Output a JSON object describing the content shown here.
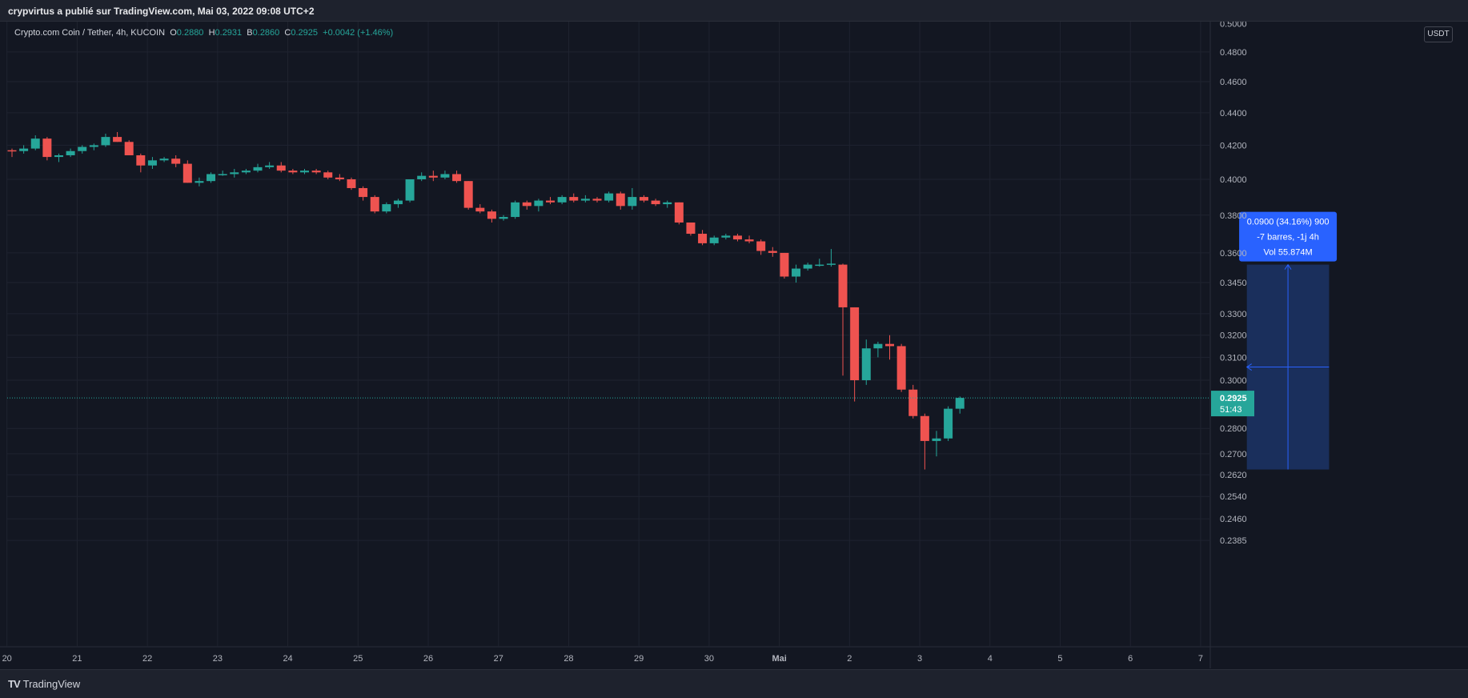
{
  "header": {
    "publish_line": "crypvirtus a publié sur TradingView.com, Mai 03, 2022 09:08 UTC+2"
  },
  "legend": {
    "symbol": "Crypto.com Coin / Tether, 4h, KUCOIN",
    "o_label": "O",
    "o_value": "0.2880",
    "h_label": "H",
    "h_value": "0.2931",
    "b_label": "B",
    "b_value": "0.2860",
    "c_label": "C",
    "c_value": "0.2925",
    "change": "+0.0042 (+1.46%)"
  },
  "price_axis": {
    "currency": "USDT",
    "top_partial": "0.5000",
    "ticks": [
      "0.4800",
      "0.4600",
      "0.4400",
      "0.4200",
      "0.4000",
      "0.3800",
      "0.3600",
      "0.3450",
      "0.3300",
      "0.3200",
      "0.3100",
      "0.3000",
      "0.2800",
      "0.2700",
      "0.2620",
      "0.2540",
      "0.2460",
      "0.2385"
    ],
    "tick_values": [
      0.48,
      0.46,
      0.44,
      0.42,
      0.4,
      0.38,
      0.36,
      0.345,
      0.33,
      0.32,
      0.31,
      0.3,
      0.28,
      0.27,
      0.262,
      0.254,
      0.246,
      0.2385
    ],
    "scale": "log"
  },
  "time_axis": {
    "labels": [
      "20",
      "21",
      "22",
      "23",
      "24",
      "25",
      "26",
      "27",
      "28",
      "29",
      "30",
      "Mai",
      "2",
      "3",
      "4",
      "5",
      "6",
      "7"
    ]
  },
  "last_price": {
    "price": "0.2925",
    "countdown": "51:43",
    "value": 0.2925
  },
  "measure_tool": {
    "line1": "0.0900 (34.16%) 900",
    "line2": "-7 barres, -1j 4h",
    "line3": "Vol 55.874M",
    "from_price": 0.354,
    "to_price": 0.264,
    "from_bar": 106,
    "to_bar": 112
  },
  "chart_data": {
    "type": "candlestick",
    "timeframe": "4h",
    "start": "2022-04-20 00:00",
    "candles": [
      [
        0.417,
        0.418,
        0.413,
        0.4165
      ],
      [
        0.4165,
        0.42,
        0.415,
        0.418
      ],
      [
        0.418,
        0.426,
        0.417,
        0.424
      ],
      [
        0.424,
        0.425,
        0.411,
        0.413
      ],
      [
        0.413,
        0.415,
        0.41,
        0.414
      ],
      [
        0.414,
        0.418,
        0.413,
        0.4165
      ],
      [
        0.4165,
        0.42,
        0.415,
        0.419
      ],
      [
        0.419,
        0.421,
        0.417,
        0.42
      ],
      [
        0.42,
        0.427,
        0.419,
        0.425
      ],
      [
        0.425,
        0.428,
        0.422,
        0.422
      ],
      [
        0.422,
        0.423,
        0.414,
        0.414
      ],
      [
        0.414,
        0.415,
        0.404,
        0.408
      ],
      [
        0.408,
        0.413,
        0.406,
        0.411
      ],
      [
        0.411,
        0.413,
        0.41,
        0.412
      ],
      [
        0.412,
        0.414,
        0.407,
        0.409
      ],
      [
        0.409,
        0.411,
        0.398,
        0.398
      ],
      [
        0.398,
        0.401,
        0.396,
        0.399
      ],
      [
        0.399,
        0.404,
        0.398,
        0.403
      ],
      [
        0.403,
        0.405,
        0.402,
        0.403
      ],
      [
        0.403,
        0.406,
        0.401,
        0.404
      ],
      [
        0.404,
        0.406,
        0.403,
        0.405
      ],
      [
        0.405,
        0.409,
        0.404,
        0.407
      ],
      [
        0.407,
        0.41,
        0.406,
        0.408
      ],
      [
        0.408,
        0.41,
        0.404,
        0.405
      ],
      [
        0.405,
        0.406,
        0.403,
        0.404
      ],
      [
        0.404,
        0.406,
        0.403,
        0.405
      ],
      [
        0.405,
        0.406,
        0.403,
        0.404
      ],
      [
        0.404,
        0.405,
        0.4,
        0.401
      ],
      [
        0.401,
        0.403,
        0.399,
        0.4
      ],
      [
        0.4,
        0.401,
        0.394,
        0.395
      ],
      [
        0.395,
        0.396,
        0.388,
        0.39
      ],
      [
        0.39,
        0.391,
        0.381,
        0.382
      ],
      [
        0.382,
        0.387,
        0.381,
        0.386
      ],
      [
        0.386,
        0.389,
        0.384,
        0.388
      ],
      [
        0.388,
        0.4,
        0.387,
        0.4
      ],
      [
        0.4,
        0.404,
        0.399,
        0.402
      ],
      [
        0.402,
        0.405,
        0.399,
        0.401
      ],
      [
        0.401,
        0.405,
        0.4,
        0.403
      ],
      [
        0.403,
        0.405,
        0.398,
        0.399
      ],
      [
        0.399,
        0.399,
        0.383,
        0.384
      ],
      [
        0.384,
        0.386,
        0.381,
        0.382
      ],
      [
        0.382,
        0.383,
        0.376,
        0.378
      ],
      [
        0.378,
        0.38,
        0.377,
        0.379
      ],
      [
        0.379,
        0.388,
        0.378,
        0.387
      ],
      [
        0.387,
        0.388,
        0.383,
        0.385
      ],
      [
        0.385,
        0.389,
        0.382,
        0.388
      ],
      [
        0.388,
        0.39,
        0.386,
        0.387
      ],
      [
        0.387,
        0.391,
        0.386,
        0.39
      ],
      [
        0.39,
        0.392,
        0.387,
        0.388
      ],
      [
        0.388,
        0.391,
        0.387,
        0.389
      ],
      [
        0.389,
        0.39,
        0.387,
        0.388
      ],
      [
        0.388,
        0.393,
        0.387,
        0.392
      ],
      [
        0.392,
        0.393,
        0.383,
        0.385
      ],
      [
        0.385,
        0.395,
        0.383,
        0.39
      ],
      [
        0.39,
        0.391,
        0.387,
        0.388
      ],
      [
        0.388,
        0.389,
        0.385,
        0.386
      ],
      [
        0.386,
        0.388,
        0.384,
        0.387
      ],
      [
        0.387,
        0.387,
        0.375,
        0.376
      ],
      [
        0.376,
        0.376,
        0.369,
        0.37
      ],
      [
        0.37,
        0.372,
        0.364,
        0.365
      ],
      [
        0.365,
        0.369,
        0.364,
        0.368
      ],
      [
        0.368,
        0.37,
        0.367,
        0.369
      ],
      [
        0.369,
        0.37,
        0.366,
        0.367
      ],
      [
        0.367,
        0.369,
        0.365,
        0.366
      ],
      [
        0.366,
        0.367,
        0.359,
        0.361
      ],
      [
        0.361,
        0.363,
        0.358,
        0.36
      ],
      [
        0.36,
        0.36,
        0.347,
        0.348
      ],
      [
        0.348,
        0.354,
        0.345,
        0.352
      ],
      [
        0.352,
        0.355,
        0.351,
        0.354
      ],
      [
        0.354,
        0.357,
        0.353,
        0.354
      ],
      [
        0.354,
        0.362,
        0.353,
        0.3545
      ],
      [
        0.354,
        0.3545,
        0.302,
        0.333
      ],
      [
        0.333,
        0.333,
        0.291,
        0.3
      ],
      [
        0.3,
        0.318,
        0.298,
        0.314
      ],
      [
        0.314,
        0.317,
        0.31,
        0.316
      ],
      [
        0.316,
        0.32,
        0.309,
        0.315
      ],
      [
        0.315,
        0.316,
        0.295,
        0.296
      ],
      [
        0.296,
        0.298,
        0.284,
        0.285
      ],
      [
        0.285,
        0.286,
        0.264,
        0.275
      ],
      [
        0.275,
        0.279,
        0.269,
        0.276
      ],
      [
        0.276,
        0.289,
        0.275,
        0.288
      ],
      [
        0.288,
        0.2931,
        0.286,
        0.2925
      ]
    ]
  },
  "branding": {
    "logo_mark": "TV",
    "name": "TradingView"
  },
  "colors": {
    "background": "#131722",
    "grid": "#1f2330",
    "up": "#26a69a",
    "down": "#ef5350",
    "measure_fill": "#1c3466",
    "measure_line": "#2962ff",
    "axis_text": "#b2b5be"
  }
}
